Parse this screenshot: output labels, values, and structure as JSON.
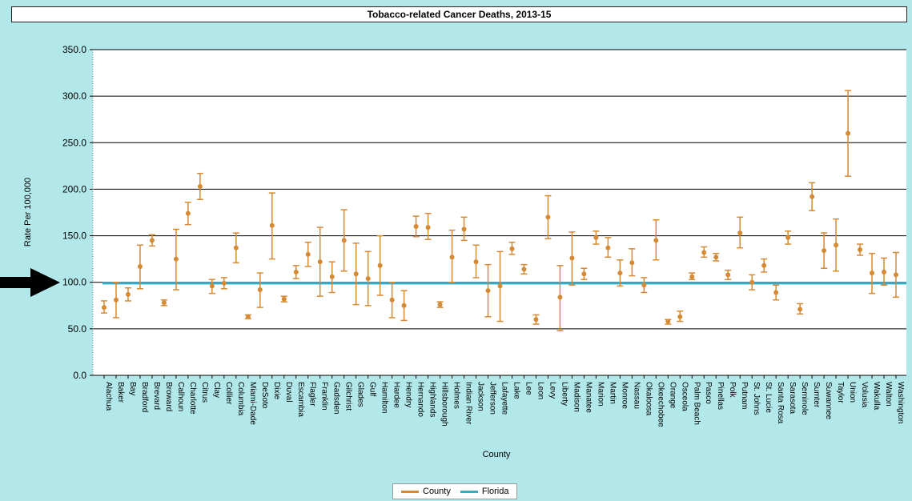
{
  "colors": {
    "background": "#b2e8ea",
    "county": "#d58a35",
    "florida": "#3aa9c4",
    "gridline": "#000000",
    "arrow": "#000000"
  },
  "legend": {
    "county_label": "County",
    "florida_label": "Florida"
  },
  "chart_data": {
    "type": "scatter",
    "title": "Tobacco-related Cancer Deaths, 2013-15",
    "xlabel": "County",
    "ylabel": "Rate Per 100,000",
    "ylim": [
      0,
      350
    ],
    "yticks": [
      "0.0",
      "50.0",
      "100.0",
      "150.0",
      "200.0",
      "250.0",
      "300.0",
      "350.0"
    ],
    "grid": true,
    "legend_position": "bottom",
    "categories": [
      "Alachua",
      "Baker",
      "Bay",
      "Bradford",
      "Brevard",
      "Broward",
      "Calhoun",
      "Charlotte",
      "Citrus",
      "Clay",
      "Collier",
      "Columbia",
      "Miami-Dade",
      "DeSoto",
      "Dixie",
      "Duval",
      "Escambia",
      "Flagler",
      "Franklin",
      "Gadsden",
      "Gilchrist",
      "Glades",
      "Gulf",
      "Hamilton",
      "Hardee",
      "Hendry",
      "Hernando",
      "Highlands",
      "Hillsborough",
      "Holmes",
      "Indian River",
      "Jackson",
      "Jefferson",
      "Lafayette",
      "Lake",
      "Lee",
      "Leon",
      "Levy",
      "Liberty",
      "Madison",
      "Manatee",
      "Marion",
      "Martin",
      "Monroe",
      "Nassau",
      "Okaloosa",
      "Okeechobee",
      "Orange",
      "Osceola",
      "Palm Beach",
      "Pasco",
      "Pinellas",
      "Polk",
      "Putnam",
      "St. Johns",
      "St. Lucie",
      "Santa Rosa",
      "Sarasota",
      "Seminole",
      "Sumter",
      "Suwannee",
      "Taylor",
      "Union",
      "Volusia",
      "Wakulla",
      "Walton",
      "Washington"
    ],
    "series": [
      {
        "name": "County",
        "values": [
          73,
          81,
          87,
          117,
          145,
          78,
          125,
          174,
          203,
          96,
          99,
          137,
          63,
          92,
          161,
          82,
          111,
          130,
          122,
          106,
          145,
          109,
          104,
          118,
          81,
          75,
          160,
          159,
          76,
          127,
          157,
          122,
          91,
          96,
          136,
          114,
          60,
          170,
          84,
          126,
          109,
          148,
          137,
          110,
          121,
          97,
          145,
          58,
          63,
          106,
          132,
          127,
          108,
          153,
          100,
          118,
          89,
          148,
          71,
          192,
          134,
          140,
          260,
          135,
          110,
          111,
          108
        ],
        "lower": [
          67,
          62,
          80,
          93,
          139,
          75,
          92,
          162,
          189,
          88,
          93,
          121,
          61,
          73,
          125,
          79,
          104,
          117,
          85,
          89,
          112,
          76,
          75,
          86,
          62,
          59,
          149,
          146,
          73,
          100,
          145,
          105,
          63,
          58,
          130,
          109,
          55,
          147,
          48,
          97,
          103,
          141,
          127,
          96,
          107,
          89,
          124,
          55,
          58,
          103,
          127,
          123,
          103,
          137,
          92,
          111,
          81,
          141,
          66,
          177,
          115,
          112,
          214,
          129,
          88,
          97,
          84
        ],
        "upper": [
          80,
          100,
          94,
          140,
          151,
          81,
          157,
          186,
          217,
          103,
          105,
          153,
          65,
          110,
          196,
          85,
          118,
          143,
          159,
          122,
          178,
          142,
          133,
          150,
          100,
          91,
          171,
          174,
          79,
          156,
          170,
          140,
          119,
          133,
          143,
          119,
          65,
          193,
          118,
          154,
          115,
          155,
          148,
          124,
          136,
          105,
          167,
          60,
          69,
          110,
          138,
          131,
          113,
          170,
          108,
          125,
          97,
          155,
          77,
          207,
          153,
          168,
          306,
          141,
          131,
          126,
          132
        ]
      },
      {
        "name": "Florida",
        "values": [
          99
        ]
      }
    ]
  }
}
